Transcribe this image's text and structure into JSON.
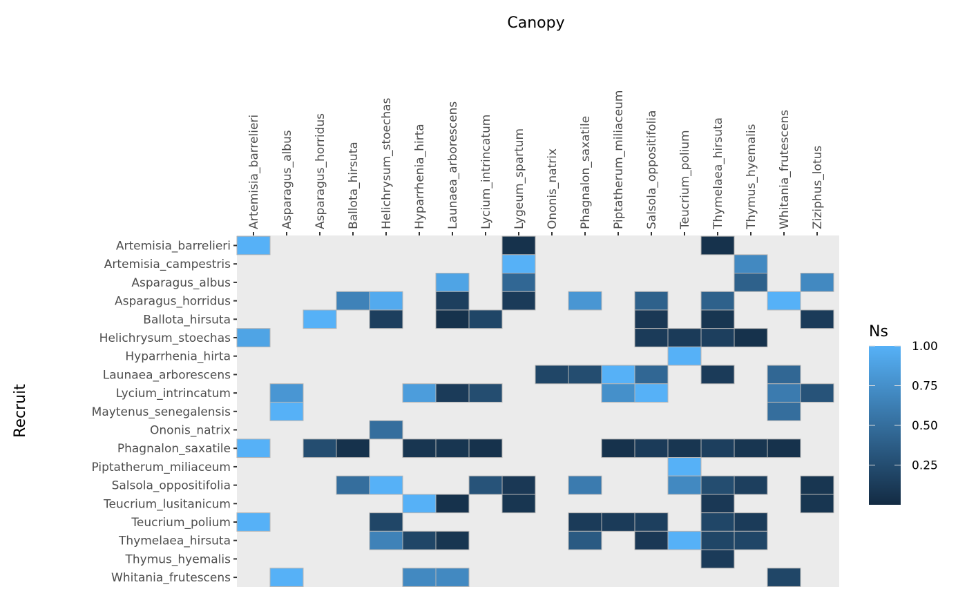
{
  "chart_data": {
    "type": "heatmap",
    "title": "",
    "xlabel": "Canopy",
    "ylabel": "Recruit",
    "x_position": "top",
    "grid": false,
    "background": "#EBEBEB",
    "columns": [
      "Artemisia_barrelieri",
      "Asparagus_albus",
      "Asparagus_horridus",
      "Ballota_hirsuta",
      "Helichrysum_stoechas",
      "Hyparrhenia_hirta",
      "Launaea_arborescens",
      "Lycium_intrincatum",
      "Lygeum_spartum",
      "Ononis_natrix",
      "Phagnalon_saxatile",
      "Piptatherum_miliaceum",
      "Salsola_oppositifolia",
      "Teucrium_polium",
      "Thymelaea_hirsuta",
      "Thymus_hyemalis",
      "Whitania_frutescens",
      "Ziziphus_lotus"
    ],
    "rows": [
      "Artemisia_barrelieri",
      "Artemisia_campestris",
      "Asparagus_albus",
      "Asparagus_horridus",
      "Ballota_hirsuta",
      "Helichrysum_stoechas",
      "Hyparrhenia_hirta",
      "Launaea_arborescens",
      "Lycium_intrincatum",
      "Maytenus_senegalensis",
      "Ononis_natrix",
      "Phagnalon_saxatile",
      "Piptatherum_miliaceum",
      "Salsola_oppositifolia",
      "Teucrium_lusitanicum",
      "Teucrium_polium",
      "Thymelaea_hirsuta",
      "Thymus_hyemalis",
      "Whitania_frutescens"
    ],
    "cells": [
      {
        "row": "Artemisia_barrelieri",
        "col": "Artemisia_barrelieri",
        "value": 1.0
      },
      {
        "row": "Artemisia_barrelieri",
        "col": "Lygeum_spartum",
        "value": 0.05
      },
      {
        "row": "Artemisia_barrelieri",
        "col": "Thymelaea_hirsuta",
        "value": 0.05
      },
      {
        "row": "Artemisia_campestris",
        "col": "Lygeum_spartum",
        "value": 1.0
      },
      {
        "row": "Artemisia_campestris",
        "col": "Thymus_hyemalis",
        "value": 0.7
      },
      {
        "row": "Asparagus_albus",
        "col": "Launaea_arborescens",
        "value": 0.9
      },
      {
        "row": "Asparagus_albus",
        "col": "Lygeum_spartum",
        "value": 0.45
      },
      {
        "row": "Asparagus_albus",
        "col": "Thymus_hyemalis",
        "value": 0.4
      },
      {
        "row": "Asparagus_albus",
        "col": "Ziziphus_lotus",
        "value": 0.7
      },
      {
        "row": "Asparagus_horridus",
        "col": "Ballota_hirsuta",
        "value": 0.65
      },
      {
        "row": "Asparagus_horridus",
        "col": "Helichrysum_stoechas",
        "value": 0.95
      },
      {
        "row": "Asparagus_horridus",
        "col": "Launaea_arborescens",
        "value": 0.15
      },
      {
        "row": "Asparagus_horridus",
        "col": "Lygeum_spartum",
        "value": 0.12
      },
      {
        "row": "Asparagus_horridus",
        "col": "Phagnalon_saxatile",
        "value": 0.8
      },
      {
        "row": "Asparagus_horridus",
        "col": "Salsola_oppositifolia",
        "value": 0.4
      },
      {
        "row": "Asparagus_horridus",
        "col": "Thymelaea_hirsuta",
        "value": 0.4
      },
      {
        "row": "Asparagus_horridus",
        "col": "Whitania_frutescens",
        "value": 1.0
      },
      {
        "row": "Ballota_hirsuta",
        "col": "Asparagus_horridus",
        "value": 1.0
      },
      {
        "row": "Ballota_hirsuta",
        "col": "Helichrysum_stoechas",
        "value": 0.15
      },
      {
        "row": "Ballota_hirsuta",
        "col": "Launaea_arborescens",
        "value": 0.05
      },
      {
        "row": "Ballota_hirsuta",
        "col": "Lycium_intrincatum",
        "value": 0.2
      },
      {
        "row": "Ballota_hirsuta",
        "col": "Salsola_oppositifolia",
        "value": 0.1
      },
      {
        "row": "Ballota_hirsuta",
        "col": "Thymelaea_hirsuta",
        "value": 0.08
      },
      {
        "row": "Ballota_hirsuta",
        "col": "Ziziphus_lotus",
        "value": 0.12
      },
      {
        "row": "Helichrysum_stoechas",
        "col": "Artemisia_barrelieri",
        "value": 0.9
      },
      {
        "row": "Helichrysum_stoechas",
        "col": "Salsola_oppositifolia",
        "value": 0.12
      },
      {
        "row": "Helichrysum_stoechas",
        "col": "Teucrium_polium",
        "value": 0.12
      },
      {
        "row": "Helichrysum_stoechas",
        "col": "Thymelaea_hirsuta",
        "value": 0.15
      },
      {
        "row": "Helichrysum_stoechas",
        "col": "Thymus_hyemalis",
        "value": 0.05
      },
      {
        "row": "Hyparrhenia_hirta",
        "col": "Teucrium_polium",
        "value": 1.0
      },
      {
        "row": "Launaea_arborescens",
        "col": "Ononis_natrix",
        "value": 0.2
      },
      {
        "row": "Launaea_arborescens",
        "col": "Phagnalon_saxatile",
        "value": 0.25
      },
      {
        "row": "Launaea_arborescens",
        "col": "Piptatherum_miliaceum",
        "value": 1.0
      },
      {
        "row": "Launaea_arborescens",
        "col": "Salsola_oppositifolia",
        "value": 0.45
      },
      {
        "row": "Launaea_arborescens",
        "col": "Thymelaea_hirsuta",
        "value": 0.12
      },
      {
        "row": "Launaea_arborescens",
        "col": "Whitania_frutescens",
        "value": 0.45
      },
      {
        "row": "Lycium_intrincatum",
        "col": "Asparagus_albus",
        "value": 0.8
      },
      {
        "row": "Lycium_intrincatum",
        "col": "Hyparrhenia_hirta",
        "value": 0.85
      },
      {
        "row": "Lycium_intrincatum",
        "col": "Launaea_arborescens",
        "value": 0.12
      },
      {
        "row": "Lycium_intrincatum",
        "col": "Lycium_intrincatum",
        "value": 0.25
      },
      {
        "row": "Lycium_intrincatum",
        "col": "Piptatherum_miliaceum",
        "value": 0.75
      },
      {
        "row": "Lycium_intrincatum",
        "col": "Salsola_oppositifolia",
        "value": 1.0
      },
      {
        "row": "Lycium_intrincatum",
        "col": "Whitania_frutescens",
        "value": 0.6
      },
      {
        "row": "Lycium_intrincatum",
        "col": "Ziziphus_lotus",
        "value": 0.3
      },
      {
        "row": "Maytenus_senegalensis",
        "col": "Asparagus_albus",
        "value": 1.0
      },
      {
        "row": "Maytenus_senegalensis",
        "col": "Whitania_frutescens",
        "value": 0.5
      },
      {
        "row": "Ononis_natrix",
        "col": "Helichrysum_stoechas",
        "value": 0.5
      },
      {
        "row": "Phagnalon_saxatile",
        "col": "Artemisia_barrelieri",
        "value": 1.0
      },
      {
        "row": "Phagnalon_saxatile",
        "col": "Asparagus_horridus",
        "value": 0.25
      },
      {
        "row": "Phagnalon_saxatile",
        "col": "Ballota_hirsuta",
        "value": 0.05
      },
      {
        "row": "Phagnalon_saxatile",
        "col": "Hyparrhenia_hirta",
        "value": 0.08
      },
      {
        "row": "Phagnalon_saxatile",
        "col": "Launaea_arborescens",
        "value": 0.08
      },
      {
        "row": "Phagnalon_saxatile",
        "col": "Lycium_intrincatum",
        "value": 0.05
      },
      {
        "row": "Phagnalon_saxatile",
        "col": "Piptatherum_miliaceum",
        "value": 0.05
      },
      {
        "row": "Phagnalon_saxatile",
        "col": "Salsola_oppositifolia",
        "value": 0.12
      },
      {
        "row": "Phagnalon_saxatile",
        "col": "Teucrium_polium",
        "value": 0.08
      },
      {
        "row": "Phagnalon_saxatile",
        "col": "Thymelaea_hirsuta",
        "value": 0.15
      },
      {
        "row": "Phagnalon_saxatile",
        "col": "Thymus_hyemalis",
        "value": 0.08
      },
      {
        "row": "Phagnalon_saxatile",
        "col": "Whitania_frutescens",
        "value": 0.05
      },
      {
        "row": "Piptatherum_miliaceum",
        "col": "Teucrium_polium",
        "value": 1.0
      },
      {
        "row": "Salsola_oppositifolia",
        "col": "Ballota_hirsuta",
        "value": 0.5
      },
      {
        "row": "Salsola_oppositifolia",
        "col": "Helichrysum_stoechas",
        "value": 1.0
      },
      {
        "row": "Salsola_oppositifolia",
        "col": "Lycium_intrincatum",
        "value": 0.3
      },
      {
        "row": "Salsola_oppositifolia",
        "col": "Lygeum_spartum",
        "value": 0.1
      },
      {
        "row": "Salsola_oppositifolia",
        "col": "Phagnalon_saxatile",
        "value": 0.6
      },
      {
        "row": "Salsola_oppositifolia",
        "col": "Teucrium_polium",
        "value": 0.7
      },
      {
        "row": "Salsola_oppositifolia",
        "col": "Thymelaea_hirsuta",
        "value": 0.25
      },
      {
        "row": "Salsola_oppositifolia",
        "col": "Thymus_hyemalis",
        "value": 0.15
      },
      {
        "row": "Salsola_oppositifolia",
        "col": "Ziziphus_lotus",
        "value": 0.08
      },
      {
        "row": "Teucrium_lusitanicum",
        "col": "Hyparrhenia_hirta",
        "value": 1.0
      },
      {
        "row": "Teucrium_lusitanicum",
        "col": "Launaea_arborescens",
        "value": 0.05
      },
      {
        "row": "Teucrium_lusitanicum",
        "col": "Lygeum_spartum",
        "value": 0.08
      },
      {
        "row": "Teucrium_lusitanicum",
        "col": "Thymelaea_hirsuta",
        "value": 0.1
      },
      {
        "row": "Teucrium_lusitanicum",
        "col": "Ziziphus_lotus",
        "value": 0.08
      },
      {
        "row": "Teucrium_polium",
        "col": "Artemisia_barrelieri",
        "value": 1.0
      },
      {
        "row": "Teucrium_polium",
        "col": "Helichrysum_stoechas",
        "value": 0.2
      },
      {
        "row": "Teucrium_polium",
        "col": "Phagnalon_saxatile",
        "value": 0.12
      },
      {
        "row": "Teucrium_polium",
        "col": "Piptatherum_miliaceum",
        "value": 0.12
      },
      {
        "row": "Teucrium_polium",
        "col": "Salsola_oppositifolia",
        "value": 0.15
      },
      {
        "row": "Teucrium_polium",
        "col": "Thymelaea_hirsuta",
        "value": 0.2
      },
      {
        "row": "Teucrium_polium",
        "col": "Thymus_hyemalis",
        "value": 0.12
      },
      {
        "row": "Thymelaea_hirsuta",
        "col": "Helichrysum_stoechas",
        "value": 0.65
      },
      {
        "row": "Thymelaea_hirsuta",
        "col": "Hyparrhenia_hirta",
        "value": 0.2
      },
      {
        "row": "Thymelaea_hirsuta",
        "col": "Launaea_arborescens",
        "value": 0.08
      },
      {
        "row": "Thymelaea_hirsuta",
        "col": "Phagnalon_saxatile",
        "value": 0.35
      },
      {
        "row": "Thymelaea_hirsuta",
        "col": "Salsola_oppositifolia",
        "value": 0.1
      },
      {
        "row": "Thymelaea_hirsuta",
        "col": "Teucrium_polium",
        "value": 1.0
      },
      {
        "row": "Thymelaea_hirsuta",
        "col": "Thymelaea_hirsuta",
        "value": 0.2
      },
      {
        "row": "Thymelaea_hirsuta",
        "col": "Thymus_hyemalis",
        "value": 0.2
      },
      {
        "row": "Thymus_hyemalis",
        "col": "Thymelaea_hirsuta",
        "value": 0.12
      },
      {
        "row": "Whitania_frutescens",
        "col": "Asparagus_albus",
        "value": 1.0
      },
      {
        "row": "Whitania_frutescens",
        "col": "Hyparrhenia_hirta",
        "value": 0.7
      },
      {
        "row": "Whitania_frutescens",
        "col": "Launaea_arborescens",
        "value": 0.7
      },
      {
        "row": "Whitania_frutescens",
        "col": "Whitania_frutescens",
        "value": 0.2
      }
    ],
    "legend": {
      "title": "Ns",
      "placement": "right",
      "ticks": [
        "0.25",
        "0.50",
        "0.75",
        "1.00"
      ],
      "tick_values": [
        0.25,
        0.5,
        0.75,
        1.0
      ],
      "range": [
        0.0,
        1.0
      ],
      "color_low": "#132B43",
      "color_high": "#56B1F7"
    }
  }
}
